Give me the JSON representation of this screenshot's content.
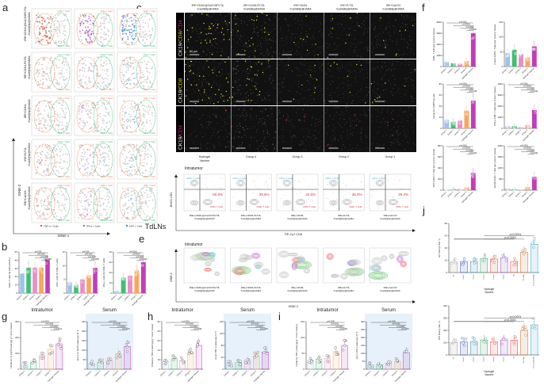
{
  "panel_letters": [
    "a",
    "b",
    "c",
    "d",
    "e",
    "f",
    "g",
    "h",
    "i",
    "j"
  ],
  "panel_a": {
    "rows": [
      "IRE+CD40L@CaCO3/FLT3L /Cas9@lip@HAMA",
      "IRE+CD40L/FLT3L /Cas9@lip@HAMA",
      "IRE+CD40L /Cas9@lip@HAMA",
      "IRE+FLT3L /Cas9@lip@HAMA",
      "IRE+CaCO3 /Cas9@lip@HAMA"
    ],
    "cd4_label": "CD4+ T Cells",
    "cd8_label": "CD8+ T Cells",
    "legend": [
      "TNF-α + Cells",
      "IFN-γ + Cells",
      "KI67 + Cells"
    ],
    "legend_colors": [
      "#e8573c",
      "#b35cc8",
      "#3f8fd0"
    ],
    "xlabel": "tSNE-1",
    "ylabel": "tSNE-2",
    "title": "TdLNs"
  },
  "panel_c": {
    "columns": [
      "IRE+CD40L@CaCO3/FLT3L /Cas9@lip@HAMA",
      "IRE+CD40L/FLT3L /Cas9@lip@HAMA",
      "IRE+CD40L /Cas9@lip@HAMA",
      "IRE+FLT3L /Cas9@lip@HAMA",
      "IRE+CaCO3 /Cas9@lip@HAMA"
    ],
    "rows": [
      {
        "parts": [
          "CK19/",
          "CD8/",
          "CD4"
        ],
        "colors": [
          "#ffffff",
          "#e8d31a",
          "#e0208f"
        ]
      },
      {
        "parts": [
          "CK19/",
          "CD8"
        ],
        "colors": [
          "#ffffff",
          "#e8d31a"
        ]
      },
      {
        "parts": [
          "CK19/",
          "CD4"
        ],
        "colors": [
          "#ffffff",
          "#e0208f"
        ]
      }
    ],
    "scale_bar": "50 μm"
  },
  "panel_d": {
    "groups": [
      "Hydrogel Vaccine",
      "Group 4",
      "Group 3",
      "Group 2",
      "Group 1"
    ],
    "subtitle": "Intratumor",
    "cd4_label": "CD4+ T cells",
    "cd8_label": "CD8+ T cells",
    "percents": [
      "60.8%",
      "39.6%",
      "32.6%",
      "35.0%",
      "29.2%"
    ],
    "captions": [
      "IRE+CD40L@CaCO3/FLT3L /Cas9@lip@HAMA",
      "IRE+CD40L/FLT3L /Cas9@lip@HAMA",
      "IRE+CD40L /Cas9@lip@HAMA",
      "IRE+FLT3L /Cas9@lip@HAMA",
      "IRE+CaCO3 /Cas9@lip@HAMA"
    ],
    "xlabel": "PE-Cy7 CD8",
    "ylabel": "BV421 CD4"
  },
  "panel_e": {
    "subtitle": "Intratumor",
    "captions": [
      "IRE+CD40L@CaCO3/FLT3L /Cas9@lip@HAMA",
      "IRE+CD40L/FLT3L /Cas9@lip@HAMA",
      "IRE+CD40L /Cas9@lip@HAMA",
      "IRE+FLT3L /Cas9@lip@HAMA",
      "IRE+CaCO3 /Cas9@lip@HAMA"
    ],
    "xlabel": "tSNE-1",
    "ylabel": "tSNE-2",
    "cluster_colors": [
      "#6cc66c",
      "#f08080",
      "#80d0e0",
      "#d080d8"
    ]
  },
  "section_titles": {
    "intratumor": "Intratumor",
    "serum": "Serum"
  },
  "group_colors": [
    "#9ec3ea",
    "#3fbf73",
    "#ec8cc6",
    "#f7a75a",
    "#c23cb8"
  ],
  "chart_data": [
    {
      "id": "b1",
      "panel": "b",
      "type": "bar",
      "categories": [
        "Group 1",
        "Group 2",
        "Group 3",
        "Group 4",
        "Hydrogel Vaccine"
      ],
      "values": [
        24,
        31,
        31,
        31,
        41
      ],
      "ylabel": "CD8+ T cells (% CD3+CD45+)",
      "ylim": [
        0,
        50
      ],
      "yticks": [
        0,
        10,
        20,
        30,
        40,
        50
      ],
      "pvalues": [
        "p=0.008",
        "p=0.0062",
        "p=0.0080",
        "p=0.0059"
      ],
      "style": "filled"
    },
    {
      "id": "b2",
      "panel": "b",
      "type": "bar",
      "categories": [
        "Group 1",
        "Group 2",
        "Group 3",
        "Group 4",
        "Hydrogel Vaccine"
      ],
      "values": [
        4,
        3,
        5,
        6.5,
        9.2
      ],
      "ylabel": "Ki67+ cells (% CD8+ T cells)",
      "ylim": [
        0,
        15
      ],
      "yticks": [
        0,
        5,
        10,
        15
      ],
      "pvalues": [
        "p=0.004",
        "p=0.0067",
        "p=0.0006",
        "p=0.0059"
      ],
      "style": "filled"
    },
    {
      "id": "b3",
      "panel": "b",
      "type": "bar",
      "categories": [
        "Group 1",
        "Group 2",
        "Group 3",
        "Group 4",
        "Hydrogel Vaccine"
      ],
      "values": [
        2,
        15,
        17,
        22,
        30
      ],
      "ylabel": "IFN-γ+ cells (% CD8+ T cells)",
      "ylim": [
        0,
        40
      ],
      "yticks": [
        0,
        10,
        20,
        30,
        40
      ],
      "pvalues": [
        "p=0.0001",
        "p=0.0007",
        "p=0.0023",
        "p=0.0028"
      ],
      "style": "filled"
    },
    {
      "id": "f1",
      "panel": "f",
      "type": "bar",
      "categories": [
        "Group 1",
        "Group 2",
        "Group 3",
        "Group 4",
        "Hydrogel Vaccine"
      ],
      "values": [
        800,
        600,
        500,
        1000,
        6000
      ],
      "ylabel": "CD8+ T cells (per g tumor tissue)",
      "ylim": [
        0,
        8000
      ],
      "yticks": [
        0,
        2000,
        4000,
        6000,
        8000
      ],
      "pvalues": [
        "p<0.0001",
        "p<0.0001",
        "p<0.0001",
        "p<0.0001"
      ],
      "style": "filled"
    },
    {
      "id": "f2",
      "panel": "f",
      "type": "bar",
      "categories": [
        "Group 1",
        "Group 2",
        "Group 3",
        "Group 4",
        "Hydrogel Vaccine"
      ],
      "values": [
        45,
        57,
        42,
        30,
        68
      ],
      "ylabel": "Foxp3+CD25+ Tregs (per g tumor tissue)",
      "ylim": [
        0,
        150
      ],
      "yticks": [
        0,
        50,
        100,
        150
      ],
      "pvalues": [],
      "style": "filled"
    },
    {
      "id": "f3",
      "panel": "f",
      "type": "bar",
      "categories": [
        "Group 1",
        "Group 2",
        "Group 3",
        "Group 4",
        "Hydrogel Vaccine"
      ],
      "values": [
        15,
        12,
        14,
        32,
        50
      ],
      "ylabel": "Intratumor CD8/Treg ratio",
      "ylim": [
        0,
        80
      ],
      "yticks": [
        0,
        20,
        40,
        60,
        80
      ],
      "pvalues": [
        "p<0.0001",
        "p<0.0001",
        "p<0.0001",
        "p=0.0156"
      ],
      "style": "filled"
    },
    {
      "id": "f4",
      "panel": "f",
      "type": "bar",
      "categories": [
        "Group 1",
        "Group 2",
        "Group 3",
        "Group 4",
        "Hydrogel Vaccine"
      ],
      "values": [
        200,
        200,
        100,
        300,
        1650
      ],
      "ylabel": "IFN-γ+CD8+ T cells (per g tumor tissue)",
      "ylim": [
        0,
        4000
      ],
      "yticks": [
        0,
        1000,
        2000,
        3000,
        4000
      ],
      "pvalues": [
        "p<0.0001",
        "p<0.0001",
        "p<0.0001",
        "p<0.0001"
      ],
      "style": "filled"
    },
    {
      "id": "f5",
      "panel": "f",
      "type": "bar",
      "categories": [
        "Group 1",
        "Group 2",
        "Group 3",
        "Group 4",
        "Hydrogel Vaccine"
      ],
      "values": [
        10,
        20,
        20,
        50,
        310
      ],
      "ylabel": "Ki67+CD8+ T cells (per g tumor tissue)",
      "ylim": [
        0,
        800
      ],
      "yticks": [
        0,
        200,
        400,
        600,
        800
      ],
      "pvalues": [
        "p<0.0001",
        "p<0.0001",
        "p<0.0001",
        "p<0.0001"
      ],
      "style": "filled"
    },
    {
      "id": "f6",
      "panel": "f",
      "type": "bar",
      "categories": [
        "Group 1",
        "Group 2",
        "Group 3",
        "Group 4",
        "Hydrogel Vaccine"
      ],
      "values": [
        80,
        50,
        40,
        150,
        600
      ],
      "ylabel": "GzmB+CD8+ T cells (per g tumor tissue)",
      "ylim": [
        0,
        2000
      ],
      "yticks": [
        0,
        500,
        1000,
        1500,
        2000
      ],
      "pvalues": [
        "p<0.0001",
        "p<0.0001",
        "p<0.0001",
        "p<0.0001"
      ],
      "style": "filled"
    },
    {
      "id": "g1",
      "panel": "g",
      "type": "bar",
      "title": "Intratumor",
      "categories": [
        "Group 1",
        "Group 2",
        "Group 3",
        "Group 4",
        "Hydrogel Vaccine"
      ],
      "values": [
        28,
        45,
        85,
        125,
        160
      ],
      "ylabel": "Intratumor IL-12p70 level (pg g⁻¹ tumor tissue)",
      "ylim": [
        0,
        300
      ],
      "yticks": [
        0,
        100,
        200,
        300
      ],
      "pvalues": [
        "p<0.0001",
        "p=0.0008",
        "p=0.0008",
        "p=0.0372"
      ],
      "style": "open"
    },
    {
      "id": "g2",
      "panel": "g",
      "type": "bar",
      "title": "Serum",
      "categories": [
        "Group 1",
        "Group 2",
        "Group 3",
        "Group 4",
        "Hydrogel Vaccine"
      ],
      "values": [
        30,
        35,
        45,
        80,
        120
      ],
      "ylabel": "serum IL-12p70 value (pg ml⁻¹)",
      "ylim": [
        0,
        250
      ],
      "yticks": [
        0,
        50,
        100,
        150,
        200,
        250
      ],
      "pvalues": [
        "p<0.0001",
        "p<0.0001",
        "p<0.0001",
        "p=0.0070"
      ],
      "style": "open",
      "shaded": true
    },
    {
      "id": "h1",
      "panel": "h",
      "type": "bar",
      "title": "Intratumor",
      "categories": [
        "Group 1",
        "Group 2",
        "Group 3",
        "Group 4",
        "Hydrogel Vaccine"
      ],
      "values": [
        8,
        11,
        9,
        18,
        25
      ],
      "ylabel": "Intratumor TNF-α level (pg g⁻¹ tumor tissue)",
      "ylim": [
        0,
        50
      ],
      "yticks": [
        0,
        10,
        20,
        30,
        40,
        50
      ],
      "pvalues": [
        "p<0.0001",
        "p=0.0003",
        "p=0.0001",
        "p=0.0084"
      ],
      "style": "open"
    },
    {
      "id": "h2",
      "panel": "h",
      "type": "bar",
      "title": "Serum",
      "categories": [
        "Group 1",
        "Group 2",
        "Group 3",
        "Group 4",
        "Hydrogel Vaccine"
      ],
      "values": [
        20,
        22,
        30,
        45,
        58
      ],
      "ylabel": "serum TNF-α value (pg ml⁻¹)",
      "ylim": [
        0,
        160
      ],
      "yticks": [
        0,
        40,
        80,
        120,
        160
      ],
      "pvalues": [
        "p=0.0002",
        "p=0.0030",
        "p=0.0027",
        "p=0.0329"
      ],
      "style": "open",
      "shaded": true
    },
    {
      "id": "i1",
      "panel": "i",
      "type": "bar",
      "title": "Intratumor",
      "categories": [
        "Group 1",
        "Group 2",
        "Group 3",
        "Group 4",
        "Hydrogel Vaccine"
      ],
      "values": [
        28,
        32,
        33,
        55,
        75
      ],
      "ylabel": "Intratumor IFN-γ level (pg g⁻¹ tumor tissue)",
      "ylim": [
        0,
        150
      ],
      "yticks": [
        0,
        50,
        100,
        150
      ],
      "pvalues": [
        "p=0.0008",
        "p=0.0011",
        "p=0.0016",
        "p=0.0484"
      ],
      "style": "open"
    },
    {
      "id": "i2",
      "panel": "i",
      "type": "bar",
      "title": "Serum",
      "categories": [
        "Group 1",
        "Group 2",
        "Group 3",
        "Group 4",
        "Hydrogel Vaccine"
      ],
      "values": [
        28,
        28,
        38,
        50,
        105
      ],
      "ylabel": "serum IFN-γ value (pg ml⁻¹)",
      "ylim": [
        0,
        300
      ],
      "yticks": [
        0,
        50,
        100,
        150,
        200,
        250,
        300
      ],
      "pvalues": [
        "p=0.0028",
        "p=0.0065",
        "p=0.0058",
        "p=0.0263"
      ],
      "style": "open",
      "shaded": true
    },
    {
      "id": "j1",
      "panel": "j",
      "type": "bar",
      "categories": [
        "WT",
        "Group1",
        "Group2",
        "Group3",
        "Group4",
        "Group5",
        "HB",
        "PD-L1 Ab",
        "FLT3L+CD40L Ab"
      ],
      "values": [
        17,
        18,
        18,
        23,
        22,
        24,
        18,
        33,
        46
      ],
      "ylabel": "ALT level (U liter⁻¹)",
      "ylim": [
        0,
        80
      ],
      "yticks": [
        0,
        20,
        40,
        60,
        80
      ],
      "pvalues": [
        "p<0.0001",
        "p<0.0001"
      ],
      "group_label": "Hydrogel Vaccine",
      "colors": [
        "#999999",
        "#3c4fb8",
        "#2f7f9a",
        "#3aa06c",
        "#d8483a",
        "#8a48c0",
        "#d84848",
        "#c06a2a",
        "#3aa0c8"
      ],
      "style": "open"
    },
    {
      "id": "j2",
      "panel": "j",
      "type": "bar",
      "categories": [
        "WT",
        "Group1",
        "Group2",
        "Group3",
        "Group4",
        "Group5",
        "HB",
        "PD-L1 Ab",
        "FLT3L+CD40L Ab"
      ],
      "values": [
        100,
        105,
        110,
        120,
        108,
        122,
        120,
        200,
        245
      ],
      "ylabel": "AST level (U liter⁻¹)",
      "ylim": [
        0,
        400
      ],
      "yticks": [
        0,
        100,
        200,
        300,
        400
      ],
      "pvalues": [
        "p<0.0001",
        "p<0.0001"
      ],
      "group_label": "Hydrogel Vaccine",
      "colors": [
        "#999999",
        "#3c4fb8",
        "#2f7f9a",
        "#3aa06c",
        "#d8483a",
        "#8a48c0",
        "#d84848",
        "#c06a2a",
        "#3aa0c8"
      ],
      "style": "open"
    }
  ]
}
